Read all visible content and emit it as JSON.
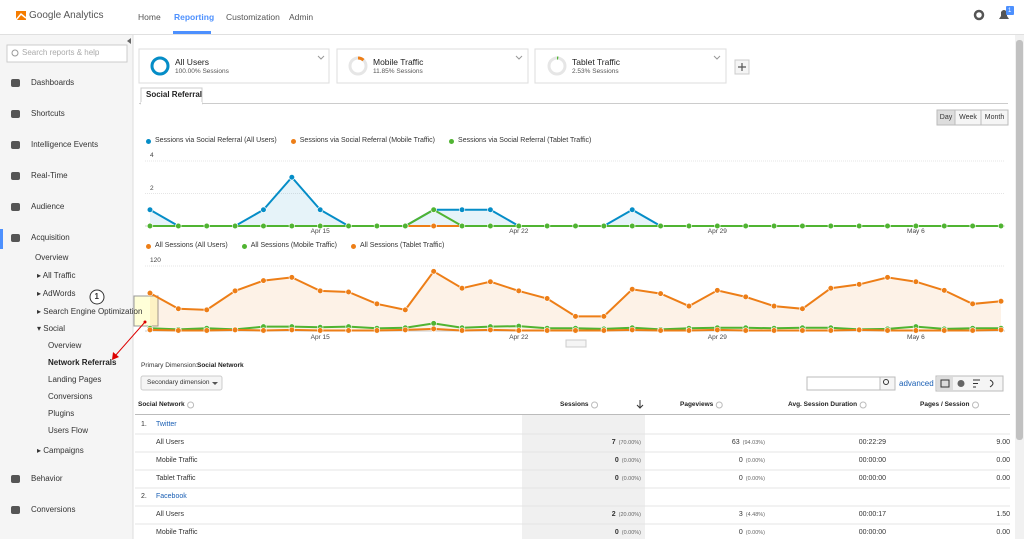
{
  "header": {
    "logo": "Google Analytics",
    "nav": [
      "Home",
      "Reporting",
      "Customization",
      "Admin"
    ],
    "active_nav": 1,
    "notification_count": "1"
  },
  "sidebar": {
    "search_placeholder": "Search reports & help",
    "items": [
      "Dashboards",
      "Shortcuts",
      "Intelligence Events",
      "Real-Time",
      "Audience",
      "Acquisition"
    ],
    "active_item": 5,
    "submenu": [
      "Overview",
      "▸ All Traffic",
      "▸ AdWords",
      "▸ Search Engine Optimization",
      "▾ Social",
      "Overview",
      "Network Referrals",
      "Landing Pages",
      "Conversions",
      "Plugins",
      "Users Flow",
      "▸ Campaigns"
    ],
    "active_subitem": 6,
    "bottom_items": [
      "Behavior",
      "Conversions"
    ]
  },
  "annotation": {
    "label": "1"
  },
  "segments": [
    {
      "name": "All Users",
      "detail": "100.00% Sessions",
      "value": 100,
      "color": "#058dc7"
    },
    {
      "name": "Mobile Traffic",
      "detail": "11.85% Sessions",
      "value": 11.85,
      "color": "#ed7e17"
    },
    {
      "name": "Tablet Traffic",
      "detail": "2.53% Sessions",
      "value": 2.53,
      "color": "#50b432"
    }
  ],
  "tab": "Social Referral",
  "interval_buttons": [
    "Day",
    "Week",
    "Month"
  ],
  "active_interval": 0,
  "charts": [
    {
      "type": "line",
      "ylim": [
        0,
        4
      ],
      "yticks": [
        2,
        4
      ],
      "categories": [
        null,
        null,
        null,
        null,
        null,
        null,
        "Apr 15",
        null,
        null,
        null,
        null,
        null,
        null,
        "Apr 22",
        null,
        null,
        null,
        null,
        null,
        null,
        "Apr 29",
        null,
        null,
        null,
        null,
        null,
        null,
        "May 6",
        null,
        null,
        null
      ],
      "series": [
        {
          "name": "Sessions via Social Referral (All Users)",
          "color": "#058dc7",
          "filled": true,
          "values": [
            1,
            0,
            0,
            0,
            1,
            3,
            1,
            0,
            0,
            0,
            1,
            1,
            1,
            0,
            0,
            0,
            0,
            1,
            0,
            0,
            0,
            0,
            0,
            0,
            0,
            0,
            0,
            0,
            0,
            0,
            0
          ]
        },
        {
          "name": "Sessions via Social Referral (Mobile Traffic)",
          "color": "#ed7e17",
          "values": [
            0,
            0,
            0,
            0,
            0,
            0,
            0,
            0,
            0,
            0,
            0,
            0,
            0,
            0,
            0,
            0,
            0,
            0,
            0,
            0,
            0,
            0,
            0,
            0,
            0,
            0,
            0,
            0,
            0,
            0,
            0
          ]
        },
        {
          "name": "Sessions via Social Referral (Tablet Traffic)",
          "color": "#50b432",
          "values": [
            0,
            0,
            0,
            0,
            0,
            0,
            0,
            0,
            0,
            0,
            1,
            0,
            0,
            0,
            0,
            0,
            0,
            0,
            0,
            0,
            0,
            0,
            0,
            0,
            0,
            0,
            0,
            0,
            0,
            0,
            0
          ]
        }
      ]
    },
    {
      "type": "line",
      "ylim": [
        0,
        120
      ],
      "yticks": [
        120
      ],
      "categories": [
        null,
        null,
        null,
        null,
        null,
        null,
        "Apr 15",
        null,
        null,
        null,
        null,
        null,
        null,
        "Apr 22",
        null,
        null,
        null,
        null,
        null,
        null,
        "Apr 29",
        null,
        null,
        null,
        null,
        null,
        null,
        "May 6",
        null,
        null,
        null
      ],
      "series": [
        {
          "name": "All Sessions (All Users)",
          "color": "#ed7e17",
          "filled": true,
          "values": [
            70,
            41,
            39,
            74,
            93,
            99,
            74,
            72,
            50,
            39,
            110,
            79,
            91,
            74,
            60,
            27,
            27,
            77,
            69,
            46,
            75,
            63,
            46,
            41,
            79,
            86,
            99,
            91,
            75,
            50,
            55
          ]
        },
        {
          "name": "All Sessions (Mobile Traffic)",
          "color": "#50b432",
          "values": [
            5,
            3,
            5,
            3,
            8,
            8,
            7,
            8,
            5,
            6,
            14,
            6,
            8,
            9,
            5,
            5,
            4,
            6,
            3,
            5,
            6,
            6,
            5,
            6,
            6,
            3,
            4,
            8,
            4,
            5,
            5
          ]
        },
        {
          "name": "All Sessions (Tablet Traffic)",
          "color": "#ed7e17",
          "values": [
            2,
            1,
            1,
            2,
            1,
            2,
            1,
            1,
            1,
            2,
            4,
            1,
            2,
            1,
            1,
            1,
            1,
            2,
            1,
            1,
            2,
            1,
            1,
            1,
            1,
            2,
            1,
            1,
            1,
            1,
            2
          ]
        }
      ]
    }
  ],
  "primary_dimension": {
    "label": "Primary Dimension:",
    "value": "Social Network"
  },
  "secondary_dimension": "Secondary dimension",
  "advanced": "advanced",
  "table": {
    "columns": [
      "Social Network",
      "Sessions",
      "Pageviews",
      "Avg. Session Duration",
      "Pages / Session"
    ],
    "groups": [
      {
        "index": "1.",
        "name": "Twitter",
        "rows": [
          [
            "All Users",
            "7",
            "(70.00%)",
            "63",
            "(94.03%)",
            "00:22:29",
            "9.00"
          ],
          [
            "Mobile Traffic",
            "0",
            "(0.00%)",
            "0",
            "(0.00%)",
            "00:00:00",
            "0.00"
          ],
          [
            "Tablet Traffic",
            "0",
            "(0.00%)",
            "0",
            "(0.00%)",
            "00:00:00",
            "0.00"
          ]
        ]
      },
      {
        "index": "2.",
        "name": "Facebook",
        "rows": [
          [
            "All Users",
            "2",
            "(20.00%)",
            "3",
            "(4.48%)",
            "00:00:17",
            "1.50"
          ],
          [
            "Mobile Traffic",
            "0",
            "(0.00%)",
            "0",
            "(0.00%)",
            "00:00:00",
            "0.00"
          ]
        ]
      }
    ]
  }
}
